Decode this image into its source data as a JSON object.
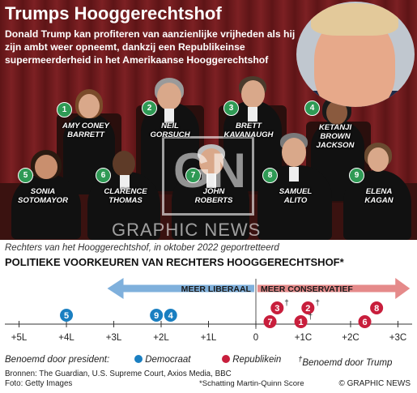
{
  "header": {
    "title": "Trumps Hooggerechtshof",
    "subtitle": "Donald Trump kan profiteren van aanzienlijke vrijheden als hij zijn ambt weer opneemt, dankzij een Republikeinse supermeerderheid in het Amerikaanse Hooggerechtshof"
  },
  "photo": {
    "watermark": "GRAPHIC NEWS",
    "justices": [
      {
        "num": "1",
        "name": "AMY CONEY\nBARRETT"
      },
      {
        "num": "2",
        "name": "NEIL\nGORSUCH"
      },
      {
        "num": "3",
        "name": "BRETT\nKAVANAUGH"
      },
      {
        "num": "4",
        "name": "KETANJI\nBROWN\nJACKSON"
      },
      {
        "num": "5",
        "name": "SONIA\nSOTOMAYOR"
      },
      {
        "num": "6",
        "name": "CLARENCE\nTHOMAS"
      },
      {
        "num": "7",
        "name": "JOHN\nROBERTS"
      },
      {
        "num": "8",
        "name": "SAMUEL\nALITO"
      },
      {
        "num": "9",
        "name": "ELENA\nKAGAN"
      }
    ]
  },
  "caption": "Rechters van het Hooggerechtshof, in oktober 2022 geportretteerd",
  "chart_title": "POLITIEKE VOORKEUREN VAN RECHTERS HOOGGERECHTSHOF*",
  "chart_data": {
    "type": "scatter",
    "xlim": [
      -5.3,
      3.3
    ],
    "ticks": [
      {
        "v": -5,
        "label": "+5L"
      },
      {
        "v": -4,
        "label": "+4L"
      },
      {
        "v": -3,
        "label": "+3L"
      },
      {
        "v": -2,
        "label": "+2L"
      },
      {
        "v": -1,
        "label": "+1L"
      },
      {
        "v": 0,
        "label": "0"
      },
      {
        "v": 1,
        "label": "+1C"
      },
      {
        "v": 2,
        "label": "+2C"
      },
      {
        "v": 3,
        "label": "+3C"
      }
    ],
    "arrows": {
      "liberal": "MEER LIBERAAL",
      "conservative": "MEER CONSERVATIEF"
    },
    "colors": {
      "democrat": "#1a7fc1",
      "republican": "#c81e3c",
      "liberal_arrow": "#7fb0dc",
      "conservative_arrow": "#e58a8a"
    },
    "points": [
      {
        "num": "5",
        "x": -4.0,
        "party": "D",
        "row": 1,
        "trump": false
      },
      {
        "num": "9",
        "x": -2.1,
        "party": "D",
        "row": 1,
        "trump": false
      },
      {
        "num": "4",
        "x": -1.8,
        "party": "D",
        "row": 1,
        "trump": false
      },
      {
        "num": "3",
        "x": 0.45,
        "party": "R",
        "row": 0,
        "trump": true
      },
      {
        "num": "7",
        "x": 0.3,
        "party": "R",
        "row": 2,
        "trump": false
      },
      {
        "num": "2",
        "x": 1.1,
        "party": "R",
        "row": 0,
        "trump": true
      },
      {
        "num": "1",
        "x": 0.95,
        "party": "R",
        "row": 2,
        "trump": true
      },
      {
        "num": "8",
        "x": 2.55,
        "party": "R",
        "row": 0,
        "trump": false
      },
      {
        "num": "6",
        "x": 2.3,
        "party": "R",
        "row": 2,
        "trump": false
      }
    ]
  },
  "legend": {
    "appointed": "Benoemd door president:",
    "democrat": "Democraat",
    "republican": "Republikein",
    "trump_mark": "†",
    "trump": "Benoemd door Trump"
  },
  "footer": {
    "sources": "Bronnen: The Guardian, U.S. Supreme Court, Axios Media, BBC",
    "photo_credit": "Foto: Getty Images",
    "note": "*Schatting Martin-Quinn Score",
    "credit": "© GRAPHIC NEWS"
  }
}
